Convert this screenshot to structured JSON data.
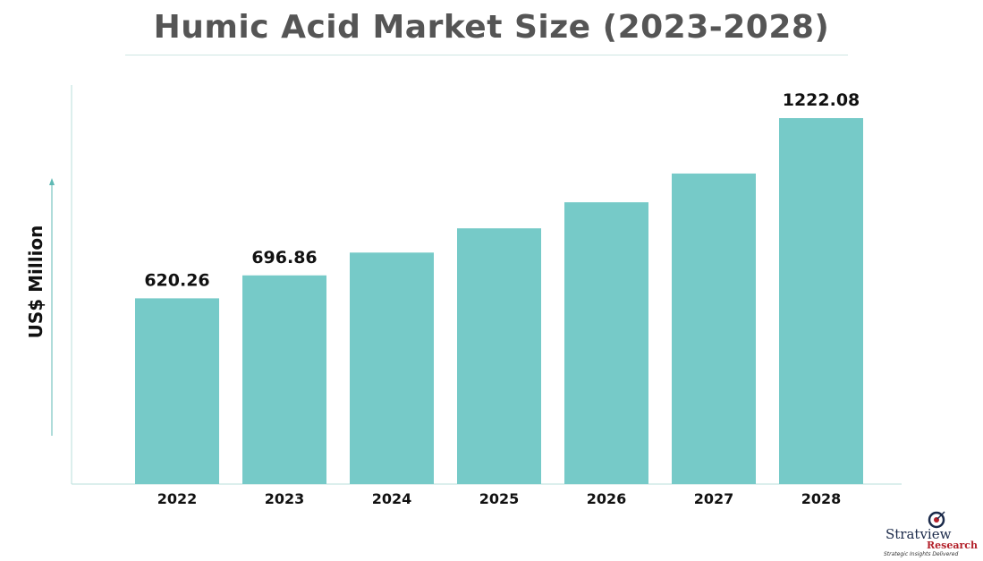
{
  "chart_data": {
    "type": "bar",
    "title": "Humic Acid Market Size (2023-2028)",
    "ylabel": "US$ Million",
    "xlabel": "",
    "categories": [
      "2022",
      "2023",
      "2024",
      "2025",
      "2026",
      "2027",
      "2028"
    ],
    "values": [
      620.26,
      696.86,
      773,
      854,
      941,
      1037,
      1222.08
    ],
    "data_labels": [
      "620.26",
      "696.86",
      "",
      "",
      "",
      "",
      "1222.08"
    ],
    "ylim": [
      0,
      1250
    ],
    "grid": false,
    "legend": "none",
    "bar_color": "#76cac8",
    "axis_color": "#b9dfdb"
  },
  "logo": {
    "name": "Stratview",
    "sub": "Research",
    "tagline": "Strategic Insights Delivered"
  }
}
